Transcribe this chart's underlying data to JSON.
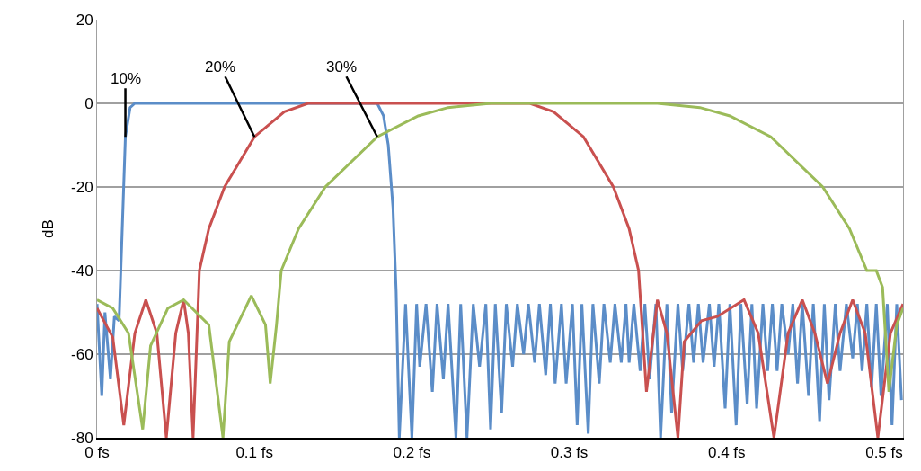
{
  "chart_data": {
    "type": "line",
    "ylabel": "dB",
    "xlim": [
      0,
      0.512
    ],
    "ylim": [
      -80,
      20
    ],
    "xticks": [
      {
        "value": 0,
        "label": "0 fs"
      },
      {
        "value": 0.1,
        "label": "0.1 fs"
      },
      {
        "value": 0.2,
        "label": "0.2 fs"
      },
      {
        "value": 0.3,
        "label": "0.3 fs"
      },
      {
        "value": 0.4,
        "label": "0.4 fs"
      },
      {
        "value": 0.5,
        "label": "0.5 fs"
      }
    ],
    "yticks": [
      -80,
      -60,
      -40,
      -20,
      0,
      20
    ],
    "grid": "y",
    "legend": false,
    "marker": "none",
    "line_style": "solid",
    "annotations": [
      {
        "text": "10%",
        "x": 0.018,
        "y": -8
      },
      {
        "text": "20%",
        "x": 0.1,
        "y": -8
      },
      {
        "text": "30%",
        "x": 0.178,
        "y": -8
      }
    ],
    "series": [
      {
        "color": "#5b8dc8",
        "x": [
          0,
          0.003,
          0.005,
          0.0085,
          0.011,
          0.014,
          0.016,
          0.018,
          0.021,
          0.024,
          0.03,
          0.06,
          0.09,
          0.12,
          0.15,
          0.178,
          0.182,
          0.185,
          0.188,
          0.19,
          0.192,
          0.196,
          0.2,
          0.203,
          0.205,
          0.209,
          0.213,
          0.216,
          0.22,
          0.223,
          0.228,
          0.231,
          0.235,
          0.239,
          0.243,
          0.247,
          0.25,
          0.253,
          0.257,
          0.26,
          0.264,
          0.267,
          0.271,
          0.274,
          0.278,
          0.281,
          0.285,
          0.288,
          0.291,
          0.295,
          0.298,
          0.302,
          0.305,
          0.308,
          0.312,
          0.315,
          0.319,
          0.322,
          0.326,
          0.329,
          0.333,
          0.336,
          0.338,
          0.341,
          0.345,
          0.348,
          0.351,
          0.355,
          0.358,
          0.362,
          0.365,
          0.369,
          0.372,
          0.376,
          0.379,
          0.382,
          0.385,
          0.389,
          0.392,
          0.395,
          0.399,
          0.402,
          0.406,
          0.409,
          0.413,
          0.416,
          0.419,
          0.423,
          0.426,
          0.429,
          0.432,
          0.435,
          0.439,
          0.442,
          0.445,
          0.448,
          0.452,
          0.455,
          0.459,
          0.462,
          0.465,
          0.469,
          0.472,
          0.476,
          0.48,
          0.483,
          0.486,
          0.489,
          0.492,
          0.495,
          0.498,
          0.502,
          0.505,
          0.508,
          0.511
        ],
        "values": [
          -48,
          -70,
          -50,
          -66,
          -51,
          -52,
          -30,
          -8,
          -1,
          0,
          0,
          0,
          0,
          0,
          0,
          0,
          -3,
          -10,
          -25,
          -45,
          -80,
          -48,
          -80,
          -48,
          -63,
          -48,
          -69,
          -48,
          -66,
          -48,
          -80,
          -48,
          -80,
          -48,
          -63,
          -48,
          -78,
          -48,
          -74,
          -48,
          -63,
          -48,
          -60,
          -48,
          -62,
          -48,
          -65,
          -48,
          -67,
          -48,
          -67,
          -48,
          -77,
          -48,
          -79,
          -48,
          -67,
          -48,
          -62,
          -48,
          -62,
          -48,
          -62,
          -48,
          -64,
          -48,
          -66,
          -48,
          -80,
          -48,
          -74,
          -48,
          -64,
          -48,
          -62,
          -48,
          -62,
          -48,
          -63,
          -48,
          -73,
          -48,
          -77,
          -48,
          -72,
          -48,
          -73,
          -48,
          -64,
          -48,
          -64,
          -48,
          -60,
          -48,
          -67,
          -48,
          -70,
          -48,
          -76,
          -48,
          -71,
          -48,
          -64,
          -48,
          -61,
          -48,
          -64,
          -48,
          -68,
          -48,
          -70,
          -48,
          -77,
          -48,
          -71
        ]
      },
      {
        "color": "#c9504f",
        "x": [
          0,
          0.01,
          0.017,
          0.024,
          0.031,
          0.038,
          0.044,
          0.05,
          0.055,
          0.058,
          0.061,
          0.065,
          0.071,
          0.081,
          0.1,
          0.119,
          0.134,
          0.2,
          0.275,
          0.29,
          0.309,
          0.328,
          0.338,
          0.344,
          0.349,
          0.356,
          0.362,
          0.369,
          0.373,
          0.384,
          0.394,
          0.411,
          0.42,
          0.43,
          0.439,
          0.448,
          0.456,
          0.464,
          0.472,
          0.48,
          0.488,
          0.496,
          0.504,
          0.512
        ],
        "values": [
          -49,
          -56,
          -77,
          -55,
          -47,
          -55,
          -80,
          -55,
          -47,
          -55,
          -80,
          -40,
          -30,
          -20,
          -8,
          -2,
          0,
          0,
          0,
          -2,
          -8,
          -20,
          -30,
          -40,
          -69,
          -47,
          -55,
          -80,
          -57,
          -52,
          -51,
          -47,
          -55,
          -80,
          -55,
          -47,
          -55,
          -67,
          -55,
          -47,
          -55,
          -80,
          -55,
          -48
        ]
      },
      {
        "color": "#9bbb59",
        "x": [
          0,
          0.01,
          0.02,
          0.029,
          0.034,
          0.045,
          0.055,
          0.071,
          0.08,
          0.084,
          0.098,
          0.107,
          0.11,
          0.114,
          0.117,
          0.128,
          0.145,
          0.178,
          0.204,
          0.223,
          0.25,
          0.3,
          0.356,
          0.383,
          0.402,
          0.428,
          0.461,
          0.478,
          0.489,
          0.495,
          0.499,
          0.503,
          0.508,
          0.512
        ],
        "values": [
          -47,
          -49,
          -55,
          -78,
          -58,
          -49,
          -47,
          -53,
          -80,
          -57,
          -46,
          -53,
          -67,
          -53,
          -40,
          -30,
          -20,
          -8,
          -3,
          -1,
          0,
          0,
          0,
          -1,
          -3,
          -8,
          -20,
          -30,
          -40,
          -40,
          -44,
          -69,
          -53,
          -49
        ]
      }
    ]
  }
}
